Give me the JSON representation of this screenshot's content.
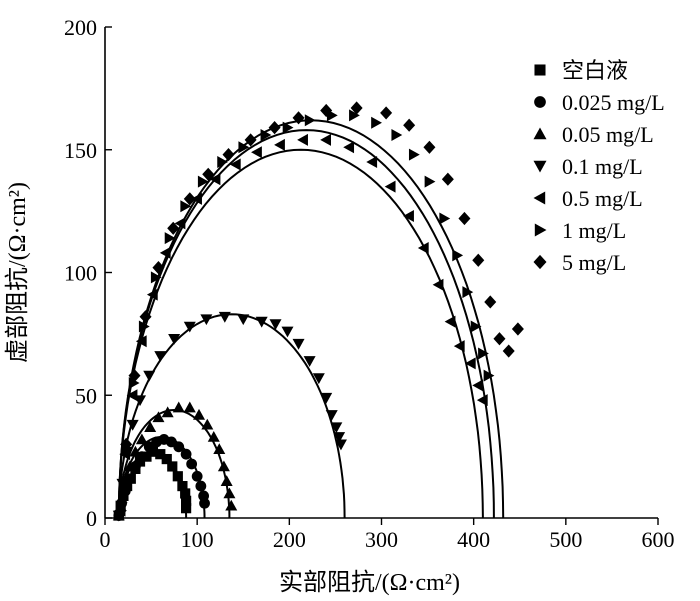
{
  "chart_data": {
    "type": "scatter",
    "xlabel": "实部阻抗/(Ω·cm²)",
    "ylabel": "虚部阻抗/(Ω·cm²)",
    "xlim": [
      0,
      600
    ],
    "ylim": [
      0,
      200
    ],
    "x_ticks": [
      0,
      100,
      200,
      300,
      400,
      500,
      600
    ],
    "y_ticks": [
      0,
      50,
      100,
      150,
      200
    ],
    "grid": false,
    "legend_position": "top-right",
    "series": [
      {
        "name": "空白液",
        "marker": "square",
        "fit": [
          15,
          88,
          27
        ],
        "points": [
          [
            15,
            1
          ],
          [
            17,
            5
          ],
          [
            20,
            9
          ],
          [
            24,
            13
          ],
          [
            28,
            16
          ],
          [
            33,
            20
          ],
          [
            38,
            23
          ],
          [
            45,
            25
          ],
          [
            52,
            27
          ],
          [
            60,
            26
          ],
          [
            67,
            24
          ],
          [
            73,
            21
          ],
          [
            79,
            17
          ],
          [
            84,
            13
          ],
          [
            87,
            10
          ],
          [
            88,
            7
          ],
          [
            88,
            4
          ]
        ]
      },
      {
        "name": "0.025 mg/L",
        "marker": "circle",
        "fit": [
          15,
          108,
          33
        ],
        "points": [
          [
            15,
            1
          ],
          [
            18,
            6
          ],
          [
            22,
            11
          ],
          [
            27,
            16
          ],
          [
            33,
            21
          ],
          [
            40,
            25
          ],
          [
            48,
            29
          ],
          [
            56,
            31
          ],
          [
            64,
            32
          ],
          [
            72,
            31
          ],
          [
            80,
            29
          ],
          [
            88,
            26
          ],
          [
            94,
            22
          ],
          [
            100,
            17
          ],
          [
            104,
            13
          ],
          [
            107,
            9
          ],
          [
            108,
            6
          ]
        ]
      },
      {
        "name": "0.05 mg/L",
        "marker": "triangle-up",
        "fit": [
          15,
          135,
          44
        ],
        "points": [
          [
            15,
            1
          ],
          [
            18,
            8
          ],
          [
            22,
            15
          ],
          [
            27,
            21
          ],
          [
            33,
            27
          ],
          [
            40,
            32
          ],
          [
            49,
            37
          ],
          [
            58,
            41
          ],
          [
            68,
            43
          ],
          [
            80,
            45
          ],
          [
            92,
            45
          ],
          [
            102,
            42
          ],
          [
            111,
            38
          ],
          [
            118,
            33
          ],
          [
            124,
            28
          ],
          [
            129,
            21
          ],
          [
            132,
            15
          ],
          [
            135,
            10
          ],
          [
            137,
            5
          ]
        ]
      },
      {
        "name": "0.1 mg/L",
        "marker": "triangle-down",
        "fit": [
          15,
          260,
          83
        ],
        "points": [
          [
            15,
            1
          ],
          [
            19,
            14
          ],
          [
            24,
            27
          ],
          [
            30,
            38
          ],
          [
            38,
            48
          ],
          [
            48,
            58
          ],
          [
            60,
            66
          ],
          [
            75,
            73
          ],
          [
            92,
            78
          ],
          [
            110,
            81
          ],
          [
            130,
            82
          ],
          [
            150,
            81
          ],
          [
            170,
            80
          ],
          [
            185,
            79
          ],
          [
            198,
            76
          ],
          [
            210,
            71
          ],
          [
            222,
            64
          ],
          [
            232,
            57
          ],
          [
            240,
            49
          ],
          [
            246,
            42
          ],
          [
            251,
            37
          ],
          [
            254,
            33
          ],
          [
            256,
            30
          ]
        ]
      },
      {
        "name": "0.5 mg/L",
        "marker": "triangle-left",
        "fit": [
          15,
          410,
          150
        ],
        "points": [
          [
            17,
            3
          ],
          [
            22,
            26
          ],
          [
            30,
            50
          ],
          [
            40,
            72
          ],
          [
            52,
            91
          ],
          [
            66,
            108
          ],
          [
            82,
            120
          ],
          [
            100,
            130
          ],
          [
            120,
            138
          ],
          [
            142,
            144
          ],
          [
            165,
            149
          ],
          [
            190,
            152
          ],
          [
            215,
            154
          ],
          [
            240,
            154
          ],
          [
            265,
            151
          ],
          [
            290,
            145
          ],
          [
            310,
            135
          ],
          [
            330,
            123
          ],
          [
            346,
            110
          ],
          [
            362,
            95
          ],
          [
            375,
            80
          ],
          [
            385,
            70
          ],
          [
            397,
            63
          ],
          [
            405,
            54
          ],
          [
            410,
            48
          ]
        ]
      },
      {
        "name": "1 mg/L",
        "marker": "triangle-right",
        "fit": [
          15,
          422,
          158
        ],
        "points": [
          [
            17,
            3
          ],
          [
            23,
            28
          ],
          [
            31,
            55
          ],
          [
            42,
            78
          ],
          [
            55,
            98
          ],
          [
            70,
            114
          ],
          [
            87,
            127
          ],
          [
            106,
            137
          ],
          [
            127,
            145
          ],
          [
            150,
            151
          ],
          [
            174,
            156
          ],
          [
            198,
            159
          ],
          [
            222,
            162
          ],
          [
            246,
            164
          ],
          [
            270,
            164
          ],
          [
            294,
            161
          ],
          [
            316,
            156
          ],
          [
            335,
            148
          ],
          [
            352,
            137
          ],
          [
            368,
            122
          ],
          [
            382,
            107
          ],
          [
            393,
            92
          ],
          [
            402,
            78
          ],
          [
            410,
            67
          ],
          [
            416,
            58
          ]
        ]
      },
      {
        "name": "5 mg/L",
        "marker": "diamond",
        "fit": [
          15,
          432,
          162
        ],
        "points": [
          [
            17,
            3
          ],
          [
            23,
            30
          ],
          [
            32,
            58
          ],
          [
            44,
            82
          ],
          [
            58,
            102
          ],
          [
            74,
            118
          ],
          [
            92,
            130
          ],
          [
            112,
            140
          ],
          [
            134,
            148
          ],
          [
            158,
            154
          ],
          [
            184,
            159
          ],
          [
            210,
            163
          ],
          [
            240,
            166
          ],
          [
            273,
            167
          ],
          [
            305,
            165
          ],
          [
            330,
            160
          ],
          [
            352,
            151
          ],
          [
            372,
            138
          ],
          [
            390,
            122
          ],
          [
            405,
            105
          ],
          [
            418,
            88
          ],
          [
            428,
            73
          ],
          [
            438,
            68
          ],
          [
            448,
            77
          ]
        ]
      }
    ]
  }
}
